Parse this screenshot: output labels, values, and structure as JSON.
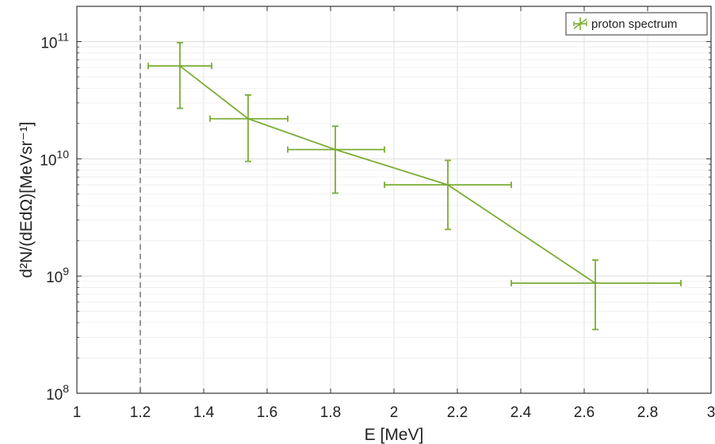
{
  "chart_data": {
    "type": "line",
    "xlabel": "E [MeV]",
    "ylabel": "d²N/(dEdΩ)[MeVsr⁻¹]",
    "xlim": [
      1,
      3
    ],
    "ylim": [
      100000000,
      200000000000
    ],
    "yscale": "log",
    "grid": true,
    "legend_position": "top-right",
    "x_ticks": [
      "1",
      "1.2",
      "1.4",
      "1.6",
      "1.8",
      "2",
      "2.2",
      "2.4",
      "2.6",
      "2.8",
      "3"
    ],
    "y_ticks": [
      {
        "base": "10",
        "exp": "8"
      },
      {
        "base": "10",
        "exp": "9"
      },
      {
        "base": "10",
        "exp": "10"
      },
      {
        "base": "10",
        "exp": "11"
      }
    ],
    "threshold_line_x": 1.2,
    "series": [
      {
        "name": "proton spectrum",
        "color": "#7aad35",
        "points": [
          {
            "x": 1.325,
            "y": 62000000000,
            "xerr_low": 1.225,
            "xerr_high": 1.425,
            "yerr_low": 27000000000,
            "yerr_high": 98000000000
          },
          {
            "x": 1.54,
            "y": 22000000000,
            "xerr_low": 1.42,
            "xerr_high": 1.665,
            "yerr_low": 9500000000,
            "yerr_high": 35000000000
          },
          {
            "x": 1.815,
            "y": 12000000000,
            "xerr_low": 1.665,
            "xerr_high": 1.97,
            "yerr_low": 5100000000,
            "yerr_high": 19000000000
          },
          {
            "x": 2.17,
            "y": 6000000000,
            "xerr_low": 1.97,
            "xerr_high": 2.37,
            "yerr_low": 2500000000,
            "yerr_high": 9700000000
          },
          {
            "x": 2.635,
            "y": 870000000,
            "xerr_low": 2.37,
            "xerr_high": 2.905,
            "yerr_low": 350000000,
            "yerr_high": 1370000000
          }
        ]
      }
    ]
  }
}
